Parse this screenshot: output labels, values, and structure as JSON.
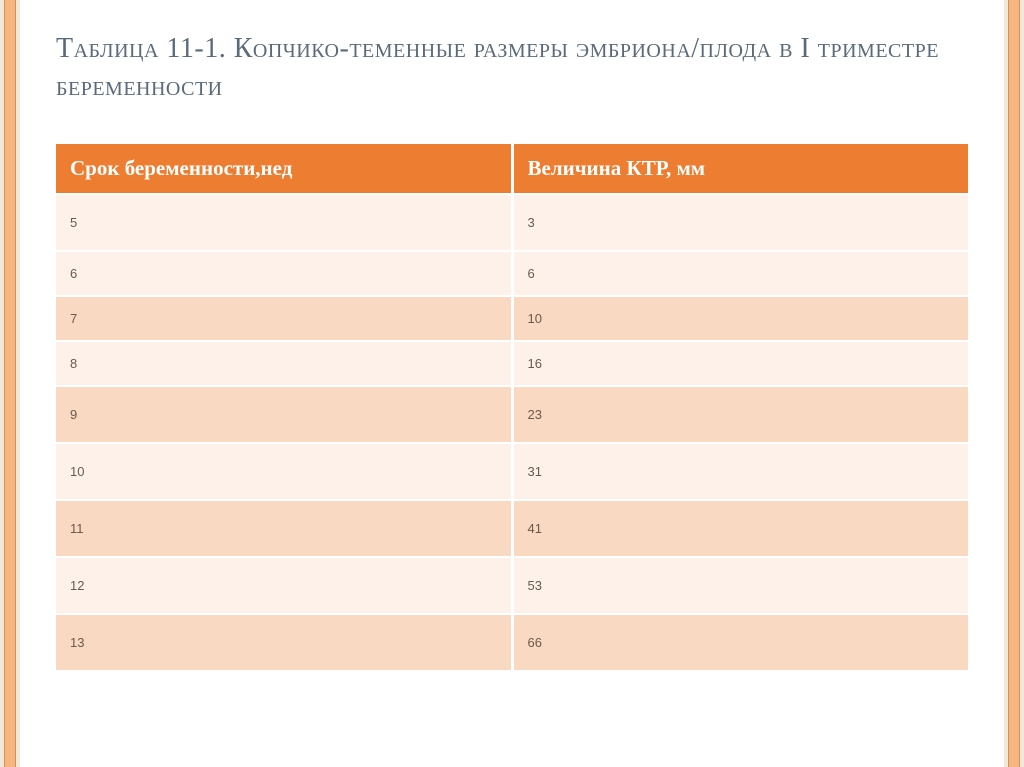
{
  "title": "Таблица 11-1. Копчико-теменные размеры эмбриона/плода в I триместре беременности",
  "table": {
    "type": "table",
    "header_bg": "#ed7d31",
    "header_fg": "#ffffff",
    "header_fontsize": 21,
    "cell_fontsize": 13,
    "cell_fg": "#6b5a4a",
    "row_light_bg": "#fdf1e9",
    "row_dark_bg": "#f9d9c2",
    "border_color": "#ffffff",
    "columns": [
      "Срок беременности,нед",
      "Величина КТР, мм"
    ],
    "rows": [
      {
        "cells": [
          "5",
          "3"
        ],
        "shade": "light",
        "tall": true
      },
      {
        "cells": [
          "6",
          "6"
        ],
        "shade": "light",
        "tall": false
      },
      {
        "cells": [
          "7",
          "10"
        ],
        "shade": "dark",
        "tall": false
      },
      {
        "cells": [
          "8",
          "16"
        ],
        "shade": "light",
        "tall": false
      },
      {
        "cells": [
          "9",
          "23"
        ],
        "shade": "dark",
        "tall": true
      },
      {
        "cells": [
          "10",
          "31"
        ],
        "shade": "light",
        "tall": true
      },
      {
        "cells": [
          "11",
          "41"
        ],
        "shade": "dark",
        "tall": true
      },
      {
        "cells": [
          "12",
          "53"
        ],
        "shade": "light",
        "tall": true
      },
      {
        "cells": [
          "13",
          "66"
        ],
        "shade": "dark",
        "tall": true
      }
    ]
  },
  "frame": {
    "side_strip_color": "#f5b682",
    "side_strip_border": "#d89050",
    "outer_bg": "#f0e8d8",
    "slide_bg": "#ffffff"
  },
  "title_color": "#5a6a7a",
  "title_fontsize": 28
}
